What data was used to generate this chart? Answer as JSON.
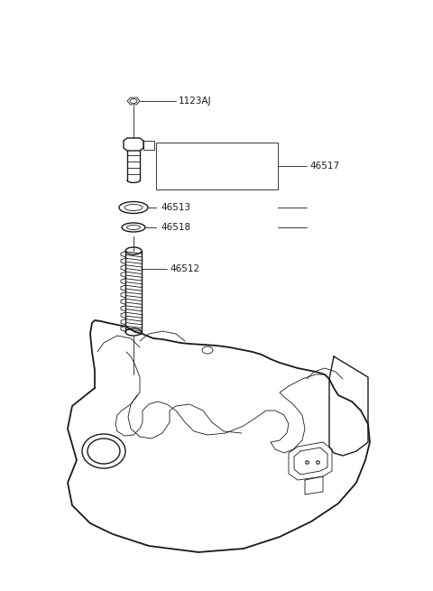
{
  "bg_color": "#ffffff",
  "line_color": "#1a1a1a",
  "label_color": "#1a1a1a",
  "label_fontsize": 7.5,
  "lw_main": 1.0,
  "lw_thin": 0.6,
  "lw_thick": 1.3
}
